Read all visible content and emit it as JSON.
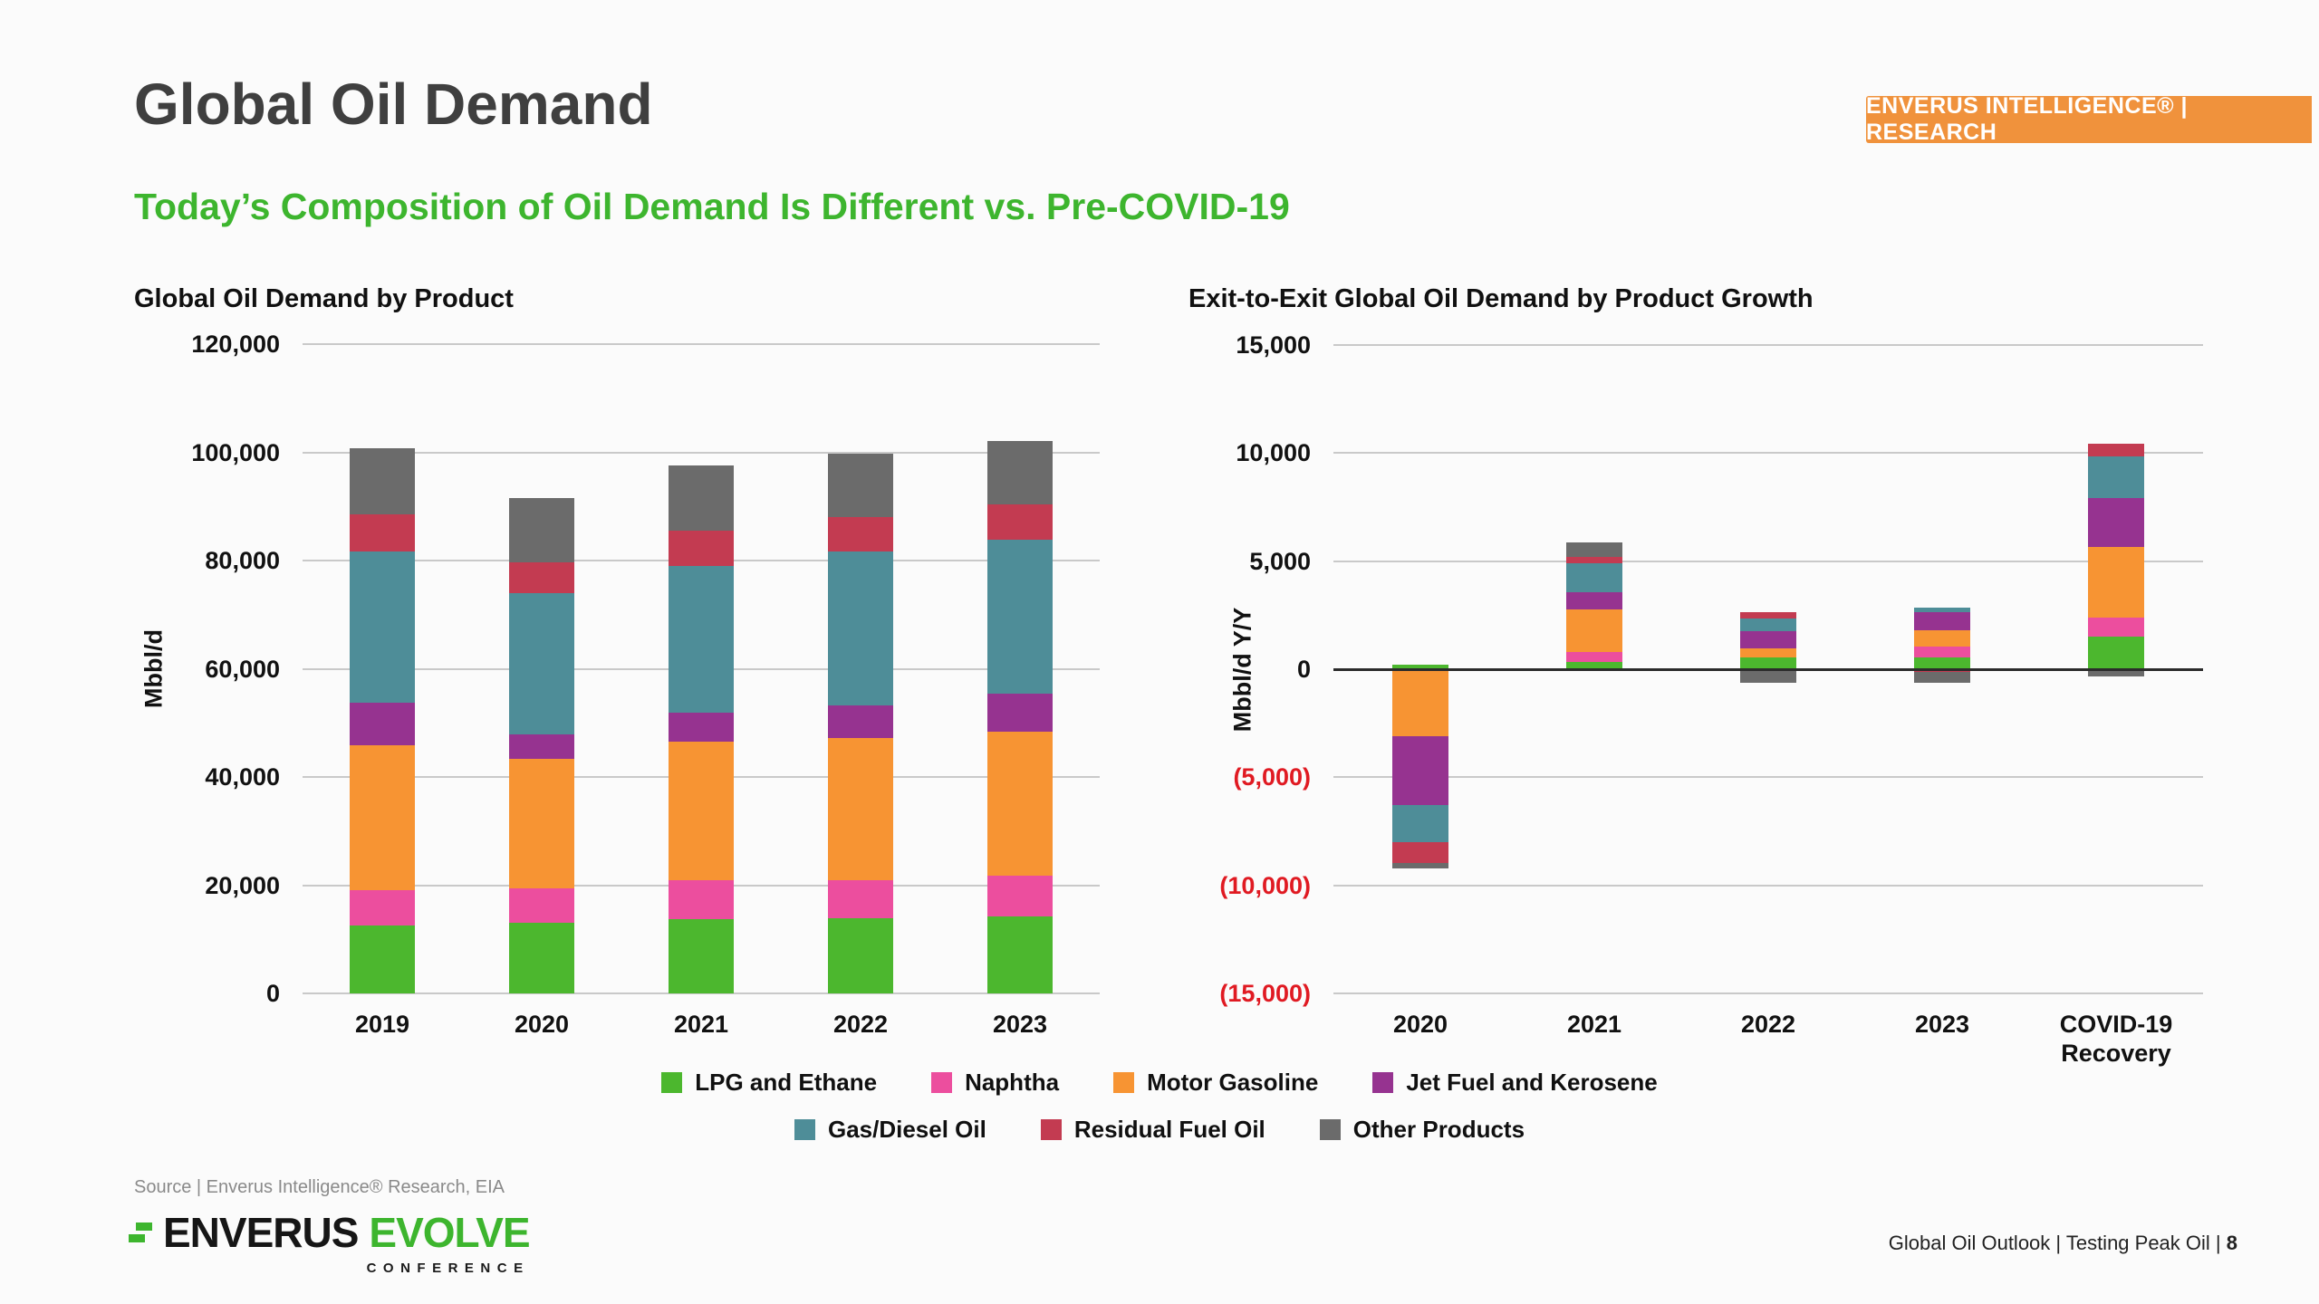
{
  "slide": {
    "title": "Global Oil Demand",
    "subtitle": "Today’s Composition of Oil Demand Is Different vs. Pre-COVID-19",
    "badge_text": "ENVERUS INTELLIGENCE® | RESEARCH",
    "source_text": "Source | Enverus Intelligence® Research, EIA",
    "footer_right_text": "Global Oil Outlook | Testing Peak Oil |",
    "page_number": "8",
    "logo": {
      "brand": "ENVERUS",
      "brand_accent": "EVOLVE",
      "brand_sub": "CONFERENCE"
    }
  },
  "colors": {
    "background": "#fbfbfb",
    "title_gray": "#3f3f3f",
    "accent_green": "#3db52e",
    "badge_orange": "#f0923c",
    "negative_tick_red": "#e01a22",
    "gridline": "#c9c9c9",
    "zero_line": "#2b2b2b"
  },
  "legend": {
    "rows": [
      [
        "LPG and Ethane",
        "Naphtha",
        "Motor Gasoline",
        "Jet Fuel and Kerosene"
      ],
      [
        "Gas/Diesel Oil",
        "Residual Fuel Oil",
        "Other Products"
      ]
    ]
  },
  "chart_data": [
    {
      "type": "bar",
      "stacked": true,
      "title": "Global Oil Demand by Product",
      "ylabel": "Mbbl/d",
      "categories": [
        "2019",
        "2020",
        "2021",
        "2022",
        "2023"
      ],
      "series": [
        {
          "name": "LPG and Ethane",
          "color": "#4cb72e",
          "values": [
            12500,
            13100,
            13700,
            13900,
            14200
          ]
        },
        {
          "name": "Naphtha",
          "color": "#ec4e9e",
          "values": [
            6500,
            6300,
            7200,
            7000,
            7500
          ]
        },
        {
          "name": "Motor Gasoline",
          "color": "#f79433",
          "values": [
            26800,
            23900,
            25600,
            26300,
            26700
          ]
        },
        {
          "name": "Jet Fuel and Kerosene",
          "color": "#963390",
          "values": [
            8000,
            4600,
            5300,
            6000,
            7000
          ]
        },
        {
          "name": "Gas/Diesel Oil",
          "color": "#4e8d98",
          "values": [
            27900,
            26100,
            27200,
            28400,
            28400
          ]
        },
        {
          "name": "Residual Fuel Oil",
          "color": "#c33b51",
          "values": [
            6900,
            5700,
            6500,
            6500,
            6500
          ]
        },
        {
          "name": "Other Products",
          "color": "#6b6b6b",
          "values": [
            12200,
            11900,
            12100,
            11600,
            11800
          ]
        }
      ],
      "ylim": [
        0,
        120000
      ],
      "ytick_step": 20000,
      "grid": true,
      "zero_line": "normal",
      "legend_position": "bottom-shared"
    },
    {
      "type": "bar",
      "stacked": true,
      "title": "Exit-to-Exit Global Oil Demand by Product Growth",
      "ylabel": "Mbbl/d Y/Y",
      "categories": [
        "2020",
        "2021",
        "2022",
        "2023",
        "COVID-19\nRecovery"
      ],
      "series": [
        {
          "name": "LPG and Ethane",
          "color": "#4cb72e",
          "values": [
            200,
            350,
            530,
            530,
            1500
          ]
        },
        {
          "name": "Naphtha",
          "color": "#ec4e9e",
          "values": [
            0,
            430,
            -100,
            510,
            900
          ]
        },
        {
          "name": "Motor Gasoline",
          "color": "#f79433",
          "values": [
            -3100,
            2000,
            440,
            780,
            3250
          ]
        },
        {
          "name": "Jet Fuel and Kerosene",
          "color": "#963390",
          "values": [
            -3200,
            790,
            800,
            800,
            2250
          ]
        },
        {
          "name": "Gas/Diesel Oil",
          "color": "#4e8d98",
          "values": [
            -1700,
            1330,
            560,
            230,
            1950
          ]
        },
        {
          "name": "Residual Fuel Oil",
          "color": "#c33b51",
          "values": [
            -950,
            280,
            320,
            -140,
            600
          ]
        },
        {
          "name": "Other Products",
          "color": "#6b6b6b",
          "values": [
            -280,
            690,
            -510,
            -490,
            -350
          ]
        }
      ],
      "ylim": [
        -15000,
        15000
      ],
      "ytick_step": 5000,
      "grid": true,
      "zero_line": "dark",
      "negative_tick_format": "parentheses-red",
      "legend_position": "bottom-shared"
    }
  ]
}
